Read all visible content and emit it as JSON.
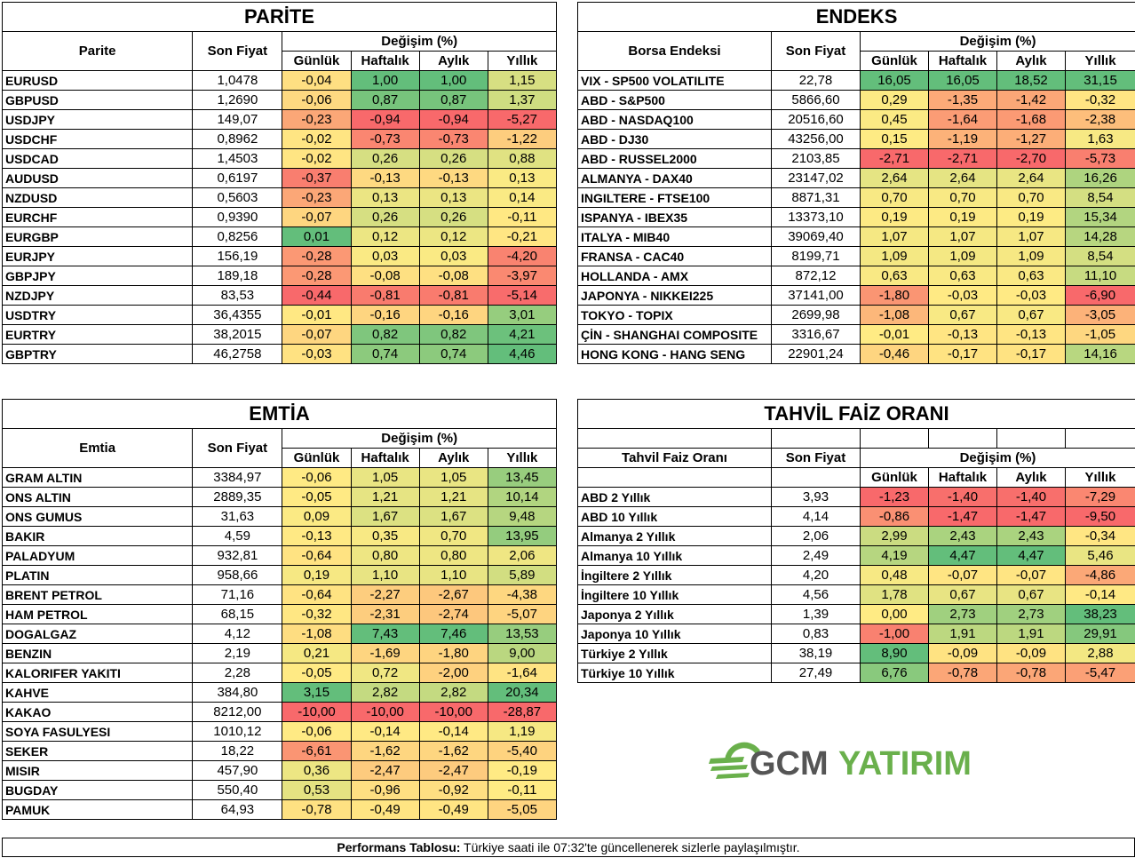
{
  "colors": {
    "green": "#63be7b",
    "yellow": "#ffeb84",
    "red": "#f8696b"
  },
  "parite": {
    "title": "PARİTE",
    "h_name": "Parite",
    "h_price": "Son Fiyat",
    "h_change": "Değişim (%)",
    "periods": [
      "Günlük",
      "Haftalık",
      "Aylık",
      "Yıllık"
    ],
    "rows": [
      [
        "EURUSD",
        "1,0478",
        "-0,04",
        "1,00",
        "1,00",
        "1,15"
      ],
      [
        "GBPUSD",
        "1,2690",
        "-0,06",
        "0,87",
        "0,87",
        "1,37"
      ],
      [
        "USDJPY",
        "149,07",
        "-0,23",
        "-0,94",
        "-0,94",
        "-5,27"
      ],
      [
        "USDCHF",
        "0,8962",
        "-0,02",
        "-0,73",
        "-0,73",
        "-1,22"
      ],
      [
        "USDCAD",
        "1,4503",
        "-0,02",
        "0,26",
        "0,26",
        "0,88"
      ],
      [
        "AUDUSD",
        "0,6197",
        "-0,37",
        "-0,13",
        "-0,13",
        "0,13"
      ],
      [
        "NZDUSD",
        "0,5603",
        "-0,23",
        "0,13",
        "0,13",
        "0,14"
      ],
      [
        "EURCHF",
        "0,9390",
        "-0,07",
        "0,26",
        "0,26",
        "-0,11"
      ],
      [
        "EURGBP",
        "0,8256",
        "0,01",
        "0,12",
        "0,12",
        "-0,21"
      ],
      [
        "EURJPY",
        "156,19",
        "-0,28",
        "0,03",
        "0,03",
        "-4,20"
      ],
      [
        "GBPJPY",
        "189,18",
        "-0,28",
        "-0,08",
        "-0,08",
        "-3,97"
      ],
      [
        "NZDJPY",
        "83,53",
        "-0,44",
        "-0,81",
        "-0,81",
        "-5,14"
      ],
      [
        "USDTRY",
        "36,4355",
        "-0,01",
        "-0,16",
        "-0,16",
        "3,01"
      ],
      [
        "EURTRY",
        "38,2015",
        "-0,07",
        "0,82",
        "0,82",
        "4,21"
      ],
      [
        "GBPTRY",
        "46,2758",
        "-0,03",
        "0,74",
        "0,74",
        "4,46"
      ]
    ]
  },
  "endeks": {
    "title": "ENDEKS",
    "h_name": "Borsa Endeksi",
    "h_price": "Son Fiyat",
    "h_change": "Değişim (%)",
    "periods": [
      "Günlük",
      "Haftalık",
      "Aylık",
      "Yıllık"
    ],
    "rows": [
      [
        "VIX  - SP500 VOLATILITE",
        "22,78",
        "16,05",
        "16,05",
        "18,52",
        "31,15"
      ],
      [
        "ABD - S&P500",
        "5866,60",
        "0,29",
        "-1,35",
        "-1,42",
        "-0,32"
      ],
      [
        "ABD - NASDAQ100",
        "20516,60",
        "0,45",
        "-1,64",
        "-1,68",
        "-2,38"
      ],
      [
        "ABD - DJ30",
        "43256,00",
        "0,15",
        "-1,19",
        "-1,27",
        "1,63"
      ],
      [
        "ABD - RUSSEL2000",
        "2103,85",
        "-2,71",
        "-2,71",
        "-2,70",
        "-5,73"
      ],
      [
        "ALMANYA - DAX40",
        "23147,02",
        "2,64",
        "2,64",
        "2,64",
        "16,26"
      ],
      [
        "INGILTERE - FTSE100",
        "8871,31",
        "0,70",
        "0,70",
        "0,70",
        "8,54"
      ],
      [
        "ISPANYA - IBEX35",
        "13373,10",
        "0,19",
        "0,19",
        "0,19",
        "15,34"
      ],
      [
        "ITALYA - MIB40",
        "39069,40",
        "1,07",
        "1,07",
        "1,07",
        "14,28"
      ],
      [
        "FRANSA - CAC40",
        "8199,71",
        "1,09",
        "1,09",
        "1,09",
        "8,54"
      ],
      [
        "HOLLANDA - AMX",
        "872,12",
        "0,63",
        "0,63",
        "0,63",
        "11,10"
      ],
      [
        "JAPONYA - NIKKEI225",
        "37141,00",
        "-1,80",
        "-0,03",
        "-0,03",
        "-6,90"
      ],
      [
        "TOKYO - TOPIX",
        "2699,98",
        "-1,08",
        "0,67",
        "0,67",
        "-3,05"
      ],
      [
        "ÇİN - SHANGHAI COMPOSITE",
        "3316,67",
        "-0,01",
        "-0,13",
        "-0,13",
        "-1,05"
      ],
      [
        "HONG KONG - HANG SENG",
        "22901,24",
        "-0,46",
        "-0,17",
        "-0,17",
        "14,16"
      ]
    ]
  },
  "emtia": {
    "title": "EMTİA",
    "h_name": "Emtia",
    "h_price": "Son Fiyat",
    "h_change": "Değişim (%)",
    "periods": [
      "Günlük",
      "Haftalık",
      "Aylık",
      "Yıllık"
    ],
    "rows": [
      [
        "GRAM ALTIN",
        "3384,97",
        "-0,06",
        "1,05",
        "1,05",
        "13,45"
      ],
      [
        "ONS ALTIN",
        "2889,35",
        "-0,05",
        "1,21",
        "1,21",
        "10,14"
      ],
      [
        "ONS GUMUS",
        "31,63",
        "0,09",
        "1,67",
        "1,67",
        "9,48"
      ],
      [
        "BAKIR",
        "4,59",
        "-0,13",
        "0,35",
        "0,70",
        "13,95"
      ],
      [
        "PALADYUM",
        "932,81",
        "-0,64",
        "0,80",
        "0,80",
        "2,06"
      ],
      [
        "PLATIN",
        "958,66",
        "0,19",
        "1,10",
        "1,10",
        "5,89"
      ],
      [
        "BRENT PETROL",
        "71,16",
        "-0,64",
        "-2,27",
        "-2,67",
        "-4,38"
      ],
      [
        "HAM PETROL",
        "68,15",
        "-0,32",
        "-2,31",
        "-2,74",
        "-5,07"
      ],
      [
        "DOGALGAZ",
        "4,12",
        "-1,08",
        "7,43",
        "7,46",
        "13,53"
      ],
      [
        "BENZIN",
        "2,19",
        "0,21",
        "-1,69",
        "-1,80",
        "9,00"
      ],
      [
        "KALORIFER YAKITI",
        "2,28",
        "-0,05",
        "0,72",
        "-2,00",
        "-1,64"
      ],
      [
        "KAHVE",
        "384,80",
        "3,15",
        "2,82",
        "2,82",
        "20,34"
      ],
      [
        "KAKAO",
        "8212,00",
        "-10,00",
        "-10,00",
        "-10,00",
        "-28,87"
      ],
      [
        "SOYA FASULYESI",
        "1010,12",
        "-0,06",
        "-0,14",
        "-0,14",
        "1,19"
      ],
      [
        "SEKER",
        "18,22",
        "-6,61",
        "-1,62",
        "-1,62",
        "-5,40"
      ],
      [
        "MISIR",
        "457,90",
        "0,36",
        "-2,47",
        "-2,47",
        "-0,19"
      ],
      [
        "BUGDAY",
        "550,40",
        "0,53",
        "-0,96",
        "-0,92",
        "-0,11"
      ],
      [
        "PAMUK",
        "64,93",
        "-0,78",
        "-0,49",
        "-0,49",
        "-5,05"
      ]
    ]
  },
  "tahvil": {
    "title": "TAHVİL FAİZ ORANI",
    "h_name": "Tahvil Faiz Oranı",
    "h_price": "Son Fiyat",
    "h_change": "Değişim (%)",
    "periods": [
      "Günlük",
      "Haftalık",
      "Aylık",
      "Yıllık"
    ],
    "rows": [
      [
        "ABD 2 Yıllık",
        "3,93",
        "-1,23",
        "-1,40",
        "-1,40",
        "-7,29"
      ],
      [
        "ABD 10 Yıllık",
        "4,14",
        "-0,86",
        "-1,47",
        "-1,47",
        "-9,50"
      ],
      [
        "Almanya 2 Yıllık",
        "2,06",
        "2,99",
        "2,43",
        "2,43",
        "-0,34"
      ],
      [
        "Almanya 10 Yıllık",
        "2,49",
        "4,19",
        "4,47",
        "4,47",
        "5,46"
      ],
      [
        "İngiltere 2 Yıllık",
        "4,20",
        "0,48",
        "-0,07",
        "-0,07",
        "-4,86"
      ],
      [
        "İngiltere 10 Yıllık",
        "4,56",
        "1,78",
        "0,67",
        "0,67",
        "-0,14"
      ],
      [
        "Japonya 2 Yıllık",
        "1,39",
        "0,00",
        "2,73",
        "2,73",
        "38,23"
      ],
      [
        "Japonya 10 Yıllık",
        "0,83",
        "-1,00",
        "1,91",
        "1,91",
        "29,91"
      ],
      [
        "Türkiye 2 Yıllık",
        "38,19",
        "8,90",
        "-0,09",
        "-0,09",
        "2,88"
      ],
      [
        "Türkiye 10 Yıllık",
        "27,49",
        "6,76",
        "-0,78",
        "-0,78",
        "-5,47"
      ]
    ]
  },
  "logo": {
    "part1": "GCM",
    "part2": "YATIRIM"
  },
  "footer": {
    "bold": "Performans Tablosu:",
    "text": " Türkiye saati ile 07:32'te güncellenerek sizlerle paylaşılmıştır."
  }
}
